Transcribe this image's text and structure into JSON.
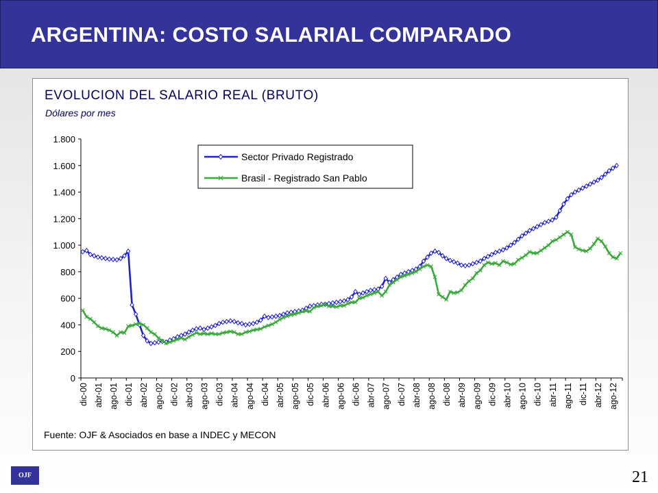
{
  "slide": {
    "title": "ARGENTINA: COSTO SALARIAL COMPARADO",
    "page_number": "21",
    "logo_text": "OJF",
    "header_color": "#333399"
  },
  "chart_data": {
    "type": "line",
    "title": "EVOLUCION DEL SALARIO REAL (BRUTO)",
    "subtitle": "Dólares por mes",
    "source": "Fuente: OJF & Asociados en base a INDEC y MECON",
    "xlabel": "",
    "ylabel": "",
    "ylim": [
      0,
      1800
    ],
    "y_ticks": [
      0,
      200,
      400,
      600,
      800,
      1000,
      1200,
      1400,
      1600,
      1800
    ],
    "y_tick_labels": [
      "0",
      "200",
      "400",
      "600",
      "800",
      "1.000",
      "1.200",
      "1.400",
      "1.600",
      "1.800"
    ],
    "x_tick_labels": [
      "dic-00",
      "abr-01",
      "ago-01",
      "dic-01",
      "abr-02",
      "ago-02",
      "dic-02",
      "abr-03",
      "ago-03",
      "dic-03",
      "abr-04",
      "ago-04",
      "dic-04",
      "abr-05",
      "ago-05",
      "dic-05",
      "abr-06",
      "ago-06",
      "dic-06",
      "abr-07",
      "ago-07",
      "dic-07",
      "abr-08",
      "ago-08",
      "dic-08",
      "abr-09",
      "ago-09",
      "dic-09",
      "abr-10",
      "ago-10",
      "dic-10",
      "abr-11",
      "ago-11",
      "dic-11",
      "abr-12",
      "ago-12"
    ],
    "x_label_step_months": 4,
    "grid": false,
    "legend": {
      "position": "top-center"
    },
    "series": [
      {
        "name": "Sector Privado Registrado",
        "color": "#1f1fd0",
        "marker": "diamond",
        "points": [
          [
            "dic-00",
            950
          ],
          [
            "ene-01",
            960
          ],
          [
            "feb-01",
            930
          ],
          [
            "mar-01",
            920
          ],
          [
            "abr-01",
            910
          ],
          [
            "may-01",
            905
          ],
          [
            "jun-01",
            900
          ],
          [
            "jul-01",
            895
          ],
          [
            "ago-01",
            893
          ],
          [
            "sep-01",
            890
          ],
          [
            "oct-01",
            900
          ],
          [
            "nov-01",
            920
          ],
          [
            "dic-01",
            955
          ],
          [
            "ene-02",
            550
          ],
          [
            "feb-02",
            480
          ],
          [
            "mar-02",
            400
          ],
          [
            "abr-02",
            320
          ],
          [
            "may-02",
            280
          ],
          [
            "jun-02",
            260
          ],
          [
            "jul-02",
            265
          ],
          [
            "ago-02",
            270
          ],
          [
            "sep-02",
            275
          ],
          [
            "oct-02",
            270
          ],
          [
            "nov-02",
            285
          ],
          [
            "dic-02",
            295
          ],
          [
            "ene-03",
            310
          ],
          [
            "feb-03",
            320
          ],
          [
            "mar-03",
            330
          ],
          [
            "abr-03",
            345
          ],
          [
            "may-03",
            360
          ],
          [
            "jun-03",
            370
          ],
          [
            "jul-03",
            375
          ],
          [
            "ago-03",
            365
          ],
          [
            "sep-03",
            375
          ],
          [
            "oct-03",
            385
          ],
          [
            "nov-03",
            395
          ],
          [
            "dic-03",
            410
          ],
          [
            "ene-04",
            420
          ],
          [
            "feb-04",
            425
          ],
          [
            "mar-04",
            430
          ],
          [
            "abr-04",
            425
          ],
          [
            "may-04",
            415
          ],
          [
            "jun-04",
            410
          ],
          [
            "jul-04",
            400
          ],
          [
            "ago-04",
            405
          ],
          [
            "sep-04",
            410
          ],
          [
            "oct-04",
            420
          ],
          [
            "nov-04",
            435
          ],
          [
            "dic-04",
            465
          ],
          [
            "ene-05",
            455
          ],
          [
            "feb-05",
            460
          ],
          [
            "mar-05",
            465
          ],
          [
            "abr-05",
            470
          ],
          [
            "may-05",
            480
          ],
          [
            "jun-05",
            490
          ],
          [
            "jul-05",
            495
          ],
          [
            "ago-05",
            500
          ],
          [
            "sep-05",
            505
          ],
          [
            "oct-05",
            510
          ],
          [
            "nov-05",
            525
          ],
          [
            "dic-05",
            540
          ],
          [
            "ene-06",
            545
          ],
          [
            "feb-06",
            550
          ],
          [
            "mar-06",
            555
          ],
          [
            "abr-06",
            555
          ],
          [
            "may-06",
            560
          ],
          [
            "jun-06",
            565
          ],
          [
            "jul-06",
            570
          ],
          [
            "ago-06",
            575
          ],
          [
            "sep-06",
            580
          ],
          [
            "oct-06",
            590
          ],
          [
            "nov-06",
            610
          ],
          [
            "dic-06",
            650
          ],
          [
            "ene-07",
            630
          ],
          [
            "feb-07",
            640
          ],
          [
            "mar-07",
            650
          ],
          [
            "abr-07",
            660
          ],
          [
            "may-07",
            665
          ],
          [
            "jun-07",
            670
          ],
          [
            "jul-07",
            690
          ],
          [
            "ago-07",
            750
          ],
          [
            "sep-07",
            720
          ],
          [
            "oct-07",
            740
          ],
          [
            "nov-07",
            760
          ],
          [
            "dic-07",
            780
          ],
          [
            "ene-08",
            790
          ],
          [
            "feb-08",
            800
          ],
          [
            "mar-08",
            810
          ],
          [
            "abr-08",
            820
          ],
          [
            "may-08",
            840
          ],
          [
            "jun-08",
            880
          ],
          [
            "jul-08",
            910
          ],
          [
            "ago-08",
            940
          ],
          [
            "sep-08",
            955
          ],
          [
            "oct-08",
            945
          ],
          [
            "nov-08",
            920
          ],
          [
            "dic-08",
            900
          ],
          [
            "ene-09",
            885
          ],
          [
            "feb-09",
            875
          ],
          [
            "mar-09",
            865
          ],
          [
            "abr-09",
            850
          ],
          [
            "may-09",
            845
          ],
          [
            "jun-09",
            850
          ],
          [
            "jul-09",
            860
          ],
          [
            "ago-09",
            870
          ],
          [
            "sep-09",
            880
          ],
          [
            "oct-09",
            900
          ],
          [
            "nov-09",
            915
          ],
          [
            "dic-09",
            930
          ],
          [
            "ene-10",
            945
          ],
          [
            "feb-10",
            955
          ],
          [
            "mar-10",
            965
          ],
          [
            "abr-10",
            980
          ],
          [
            "may-10",
            1000
          ],
          [
            "jun-10",
            1020
          ],
          [
            "jul-10",
            1045
          ],
          [
            "ago-10",
            1070
          ],
          [
            "sep-10",
            1090
          ],
          [
            "oct-10",
            1110
          ],
          [
            "nov-10",
            1125
          ],
          [
            "dic-10",
            1140
          ],
          [
            "ene-11",
            1155
          ],
          [
            "feb-11",
            1170
          ],
          [
            "mar-11",
            1180
          ],
          [
            "abr-11",
            1190
          ],
          [
            "may-11",
            1210
          ],
          [
            "jun-11",
            1260
          ],
          [
            "jul-11",
            1310
          ],
          [
            "ago-11",
            1350
          ],
          [
            "sep-11",
            1380
          ],
          [
            "oct-11",
            1400
          ],
          [
            "nov-11",
            1415
          ],
          [
            "dic-11",
            1430
          ],
          [
            "ene-12",
            1445
          ],
          [
            "feb-12",
            1460
          ],
          [
            "mar-12",
            1475
          ],
          [
            "abr-12",
            1490
          ],
          [
            "may-12",
            1510
          ],
          [
            "jun-12",
            1535
          ],
          [
            "jul-12",
            1560
          ],
          [
            "ago-12",
            1580
          ],
          [
            "sep-12",
            1600
          ]
        ]
      },
      {
        "name": "Brasil - Registrado San Pablo",
        "color": "#3aa83a",
        "marker": "x",
        "points": [
          [
            "dic-00",
            510
          ],
          [
            "ene-01",
            460
          ],
          [
            "feb-01",
            445
          ],
          [
            "mar-01",
            420
          ],
          [
            "abr-01",
            390
          ],
          [
            "may-01",
            375
          ],
          [
            "jun-01",
            370
          ],
          [
            "jul-01",
            360
          ],
          [
            "ago-01",
            345
          ],
          [
            "sep-01",
            320
          ],
          [
            "oct-01",
            345
          ],
          [
            "nov-01",
            340
          ],
          [
            "dic-01",
            390
          ],
          [
            "ene-02",
            395
          ],
          [
            "feb-02",
            405
          ],
          [
            "mar-02",
            410
          ],
          [
            "abr-02",
            400
          ],
          [
            "may-02",
            375
          ],
          [
            "jun-02",
            345
          ],
          [
            "jul-02",
            330
          ],
          [
            "ago-02",
            300
          ],
          [
            "sep-02",
            280
          ],
          [
            "oct-02",
            260
          ],
          [
            "nov-02",
            270
          ],
          [
            "dic-02",
            280
          ],
          [
            "ene-03",
            290
          ],
          [
            "feb-03",
            300
          ],
          [
            "mar-03",
            290
          ],
          [
            "abr-03",
            310
          ],
          [
            "may-03",
            325
          ],
          [
            "jun-03",
            340
          ],
          [
            "jul-03",
            330
          ],
          [
            "ago-03",
            335
          ],
          [
            "sep-03",
            330
          ],
          [
            "oct-03",
            335
          ],
          [
            "nov-03",
            330
          ],
          [
            "dic-03",
            330
          ],
          [
            "ene-04",
            340
          ],
          [
            "feb-04",
            345
          ],
          [
            "mar-04",
            350
          ],
          [
            "abr-04",
            345
          ],
          [
            "may-04",
            330
          ],
          [
            "jun-04",
            330
          ],
          [
            "jul-04",
            345
          ],
          [
            "ago-04",
            350
          ],
          [
            "sep-04",
            360
          ],
          [
            "oct-04",
            365
          ],
          [
            "nov-04",
            370
          ],
          [
            "dic-04",
            385
          ],
          [
            "ene-05",
            395
          ],
          [
            "feb-05",
            405
          ],
          [
            "mar-05",
            420
          ],
          [
            "abr-05",
            440
          ],
          [
            "may-05",
            455
          ],
          [
            "jun-05",
            465
          ],
          [
            "jul-05",
            475
          ],
          [
            "ago-05",
            480
          ],
          [
            "sep-05",
            490
          ],
          [
            "oct-05",
            500
          ],
          [
            "nov-05",
            505
          ],
          [
            "dic-05",
            500
          ],
          [
            "ene-06",
            530
          ],
          [
            "feb-06",
            540
          ],
          [
            "mar-06",
            545
          ],
          [
            "abr-06",
            555
          ],
          [
            "may-06",
            540
          ],
          [
            "jun-06",
            540
          ],
          [
            "jul-06",
            535
          ],
          [
            "ago-06",
            545
          ],
          [
            "sep-06",
            545
          ],
          [
            "oct-06",
            560
          ],
          [
            "nov-06",
            570
          ],
          [
            "dic-06",
            570
          ],
          [
            "ene-07",
            600
          ],
          [
            "feb-07",
            605
          ],
          [
            "mar-07",
            620
          ],
          [
            "abr-07",
            630
          ],
          [
            "may-07",
            640
          ],
          [
            "jun-07",
            650
          ],
          [
            "jul-07",
            620
          ],
          [
            "ago-07",
            650
          ],
          [
            "sep-07",
            700
          ],
          [
            "oct-07",
            720
          ],
          [
            "nov-07",
            740
          ],
          [
            "dic-07",
            760
          ],
          [
            "ene-08",
            770
          ],
          [
            "feb-08",
            780
          ],
          [
            "mar-08",
            790
          ],
          [
            "abr-08",
            800
          ],
          [
            "may-08",
            820
          ],
          [
            "jun-08",
            840
          ],
          [
            "jul-08",
            850
          ],
          [
            "ago-08",
            840
          ],
          [
            "sep-08",
            760
          ],
          [
            "oct-08",
            630
          ],
          [
            "nov-08",
            610
          ],
          [
            "dic-08",
            590
          ],
          [
            "ene-09",
            650
          ],
          [
            "feb-09",
            640
          ],
          [
            "mar-09",
            645
          ],
          [
            "abr-09",
            660
          ],
          [
            "may-09",
            700
          ],
          [
            "jun-09",
            730
          ],
          [
            "jul-09",
            750
          ],
          [
            "ago-09",
            790
          ],
          [
            "sep-09",
            810
          ],
          [
            "oct-09",
            850
          ],
          [
            "nov-09",
            870
          ],
          [
            "dic-09",
            860
          ],
          [
            "ene-10",
            865
          ],
          [
            "feb-10",
            850
          ],
          [
            "mar-10",
            880
          ],
          [
            "abr-10",
            870
          ],
          [
            "may-10",
            855
          ],
          [
            "jun-10",
            860
          ],
          [
            "jul-10",
            890
          ],
          [
            "ago-10",
            905
          ],
          [
            "sep-10",
            925
          ],
          [
            "oct-10",
            950
          ],
          [
            "nov-10",
            940
          ],
          [
            "dic-10",
            940
          ],
          [
            "ene-11",
            960
          ],
          [
            "feb-11",
            980
          ],
          [
            "mar-11",
            1000
          ],
          [
            "abr-11",
            1030
          ],
          [
            "may-11",
            1040
          ],
          [
            "jun-11",
            1060
          ],
          [
            "jul-11",
            1080
          ],
          [
            "ago-11",
            1100
          ],
          [
            "sep-11",
            1080
          ],
          [
            "oct-11",
            985
          ],
          [
            "nov-11",
            970
          ],
          [
            "dic-11",
            960
          ],
          [
            "ene-12",
            955
          ],
          [
            "feb-12",
            975
          ],
          [
            "mar-12",
            1010
          ],
          [
            "abr-12",
            1050
          ],
          [
            "may-12",
            1030
          ],
          [
            "jun-12",
            990
          ],
          [
            "jul-12",
            940
          ],
          [
            "ago-12",
            910
          ],
          [
            "sep-12",
            900
          ],
          [
            "oct-12",
            940
          ]
        ]
      }
    ]
  }
}
